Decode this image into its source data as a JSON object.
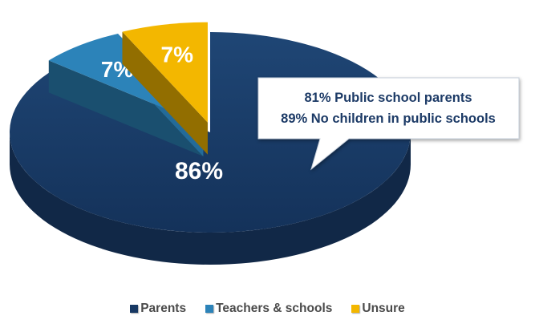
{
  "chart_data": {
    "type": "pie",
    "categories": [
      "Parents",
      "Teachers & schools",
      "Unsure"
    ],
    "values": [
      86,
      7,
      7
    ],
    "labels": [
      "86%",
      "7%",
      "7%"
    ],
    "colors": [
      "#173863",
      "#2c83b9",
      "#f3b700"
    ],
    "exploded": [
      "Teachers & schools",
      "Unsure"
    ],
    "legend_position": "bottom",
    "annotation": {
      "lines": [
        "81% Public school parents",
        "89% No children in public schools"
      ],
      "points_to": "Parents"
    }
  }
}
